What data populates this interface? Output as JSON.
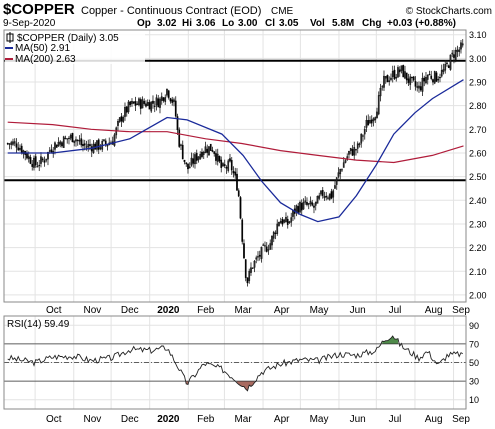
{
  "header": {
    "symbol": "$COPPER",
    "description": "Copper - Continuous Contract (EOD)",
    "exchange": "CME",
    "date": "9-Sep-2020",
    "source": "© StockCharts.com",
    "op_label": "Op",
    "op_value": "3.02",
    "hi_label": "Hi",
    "hi_value": "3.06",
    "lo_label": "Lo",
    "lo_value": "3.00",
    "cl_label": "Cl",
    "cl_value": "3.05",
    "vol_label": "Vol",
    "vol_value": "5.8M",
    "chg_label": "Chg",
    "chg_value": "+0.03 (+0.88%)"
  },
  "legend": {
    "price": "$COPPER (Daily) 3.05",
    "ma50": "MA(50) 2.91",
    "ma200": "MA(200) 2.63"
  },
  "rsi_label": "RSI(14) 59.49",
  "chart_data": [
    {
      "type": "candlestick",
      "series": [
        {
          "name": "$COPPER (Daily)",
          "points": [
            [
              "2019-09-09",
              2.64
            ],
            [
              "2019-09-16",
              2.64
            ],
            [
              "2019-09-23",
              2.6
            ],
            [
              "2019-10-01",
              2.55
            ],
            [
              "2019-10-08",
              2.57
            ],
            [
              "2019-10-15",
              2.63
            ],
            [
              "2019-10-22",
              2.65
            ],
            [
              "2019-11-01",
              2.67
            ],
            [
              "2019-11-08",
              2.63
            ],
            [
              "2019-11-15",
              2.63
            ],
            [
              "2019-11-22",
              2.63
            ],
            [
              "2019-12-02",
              2.65
            ],
            [
              "2019-12-09",
              2.75
            ],
            [
              "2019-12-16",
              2.8
            ],
            [
              "2019-12-23",
              2.81
            ],
            [
              "2020-01-02",
              2.81
            ],
            [
              "2020-01-09",
              2.82
            ],
            [
              "2020-01-15",
              2.87
            ],
            [
              "2020-01-21",
              2.8
            ],
            [
              "2020-01-24",
              2.66
            ],
            [
              "2020-01-31",
              2.53
            ],
            [
              "2020-02-07",
              2.58
            ],
            [
              "2020-02-14",
              2.62
            ],
            [
              "2020-02-21",
              2.62
            ],
            [
              "2020-02-28",
              2.53
            ],
            [
              "2020-03-06",
              2.55
            ],
            [
              "2020-03-12",
              2.45
            ],
            [
              "2020-03-16",
              2.2
            ],
            [
              "2020-03-19",
              2.05
            ],
            [
              "2020-03-23",
              2.12
            ],
            [
              "2020-03-31",
              2.18
            ],
            [
              "2020-04-07",
              2.22
            ],
            [
              "2020-04-14",
              2.32
            ],
            [
              "2020-04-21",
              2.3
            ],
            [
              "2020-04-28",
              2.37
            ],
            [
              "2020-05-05",
              2.38
            ],
            [
              "2020-05-12",
              2.37
            ],
            [
              "2020-05-19",
              2.43
            ],
            [
              "2020-05-26",
              2.42
            ],
            [
              "2020-06-02",
              2.53
            ],
            [
              "2020-06-09",
              2.6
            ],
            [
              "2020-06-16",
              2.62
            ],
            [
              "2020-06-23",
              2.72
            ],
            [
              "2020-06-30",
              2.77
            ],
            [
              "2020-07-07",
              2.9
            ],
            [
              "2020-07-14",
              2.93
            ],
            [
              "2020-07-21",
              2.95
            ],
            [
              "2020-07-28",
              2.9
            ],
            [
              "2020-08-04",
              2.87
            ],
            [
              "2020-08-11",
              2.93
            ],
            [
              "2020-08-18",
              2.92
            ],
            [
              "2020-08-25",
              2.95
            ],
            [
              "2020-09-01",
              3.02
            ],
            [
              "2020-09-09",
              3.05
            ]
          ]
        },
        {
          "name": "MA(50)",
          "points": [
            [
              "2019-09-09",
              2.6
            ],
            [
              "2019-10-15",
              2.6
            ],
            [
              "2019-11-15",
              2.62
            ],
            [
              "2019-12-16",
              2.66
            ],
            [
              "2020-01-15",
              2.75
            ],
            [
              "2020-01-31",
              2.74
            ],
            [
              "2020-02-28",
              2.68
            ],
            [
              "2020-03-16",
              2.59
            ],
            [
              "2020-03-31",
              2.48
            ],
            [
              "2020-04-15",
              2.39
            ],
            [
              "2020-05-01",
              2.34
            ],
            [
              "2020-05-15",
              2.31
            ],
            [
              "2020-06-01",
              2.33
            ],
            [
              "2020-06-15",
              2.42
            ],
            [
              "2020-07-01",
              2.55
            ],
            [
              "2020-07-15",
              2.68
            ],
            [
              "2020-08-01",
              2.77
            ],
            [
              "2020-08-15",
              2.83
            ],
            [
              "2020-09-09",
              2.91
            ]
          ]
        },
        {
          "name": "MA(200)",
          "points": [
            [
              "2019-09-09",
              2.73
            ],
            [
              "2019-10-15",
              2.72
            ],
            [
              "2019-11-15",
              2.7
            ],
            [
              "2019-12-16",
              2.69
            ],
            [
              "2020-01-15",
              2.69
            ],
            [
              "2020-02-15",
              2.66
            ],
            [
              "2020-03-15",
              2.64
            ],
            [
              "2020-04-15",
              2.61
            ],
            [
              "2020-05-15",
              2.59
            ],
            [
              "2020-06-15",
              2.57
            ],
            [
              "2020-07-15",
              2.56
            ],
            [
              "2020-08-15",
              2.59
            ],
            [
              "2020-09-09",
              2.63
            ]
          ]
        }
      ],
      "y_ticks": [
        "2.00",
        "2.10",
        "2.20",
        "2.30",
        "2.40",
        "2.50",
        "2.60",
        "2.70",
        "2.80",
        "2.90",
        "3.00",
        "3.10"
      ],
      "ylim": [
        1.97,
        3.12
      ],
      "x_ticks": [
        "Oct",
        "Nov",
        "Dec",
        "2020",
        "Feb",
        "Mar",
        "Apr",
        "May",
        "Jun",
        "Jul",
        "Aug",
        "Sep"
      ],
      "horizontal_lines": [
        2.99,
        2.485
      ],
      "grid": true
    },
    {
      "type": "line",
      "series": [
        {
          "name": "RSI(14)",
          "points": [
            [
              "2019-09-09",
              55
            ],
            [
              "2019-10-01",
              50
            ],
            [
              "2019-10-15",
              56
            ],
            [
              "2019-11-01",
              57
            ],
            [
              "2019-11-15",
              52
            ],
            [
              "2019-12-02",
              55
            ],
            [
              "2019-12-16",
              64
            ],
            [
              "2020-01-02",
              63
            ],
            [
              "2020-01-15",
              66
            ],
            [
              "2020-01-24",
              45
            ],
            [
              "2020-01-31",
              27
            ],
            [
              "2020-02-14",
              49
            ],
            [
              "2020-02-28",
              43
            ],
            [
              "2020-03-12",
              30
            ],
            [
              "2020-03-19",
              22
            ],
            [
              "2020-03-31",
              40
            ],
            [
              "2020-04-14",
              48
            ],
            [
              "2020-05-01",
              53
            ],
            [
              "2020-05-15",
              52
            ],
            [
              "2020-06-01",
              59
            ],
            [
              "2020-06-15",
              58
            ],
            [
              "2020-07-01",
              63
            ],
            [
              "2020-07-07",
              74
            ],
            [
              "2020-07-14",
              80
            ],
            [
              "2020-07-21",
              68
            ],
            [
              "2020-08-04",
              55
            ],
            [
              "2020-08-11",
              62
            ],
            [
              "2020-08-20",
              47
            ],
            [
              "2020-08-27",
              58
            ],
            [
              "2020-09-09",
              59.49
            ]
          ]
        }
      ],
      "y_ticks": [
        "10",
        "30",
        "50",
        "70",
        "90"
      ],
      "ylim": [
        0,
        100
      ],
      "reference_lines": [
        30,
        50,
        70
      ],
      "x_ticks": [
        "Oct",
        "Nov",
        "Dec",
        "2020",
        "Feb",
        "Mar",
        "Apr",
        "May",
        "Jun",
        "Jul",
        "Aug",
        "Sep"
      ]
    }
  ],
  "colors": {
    "ma50": "#1a2a9a",
    "ma200": "#b01c3a",
    "rsi_overbought": "#4f8a4a",
    "rsi_oversold": "#a86a60",
    "grid": "#e3e3e3"
  }
}
